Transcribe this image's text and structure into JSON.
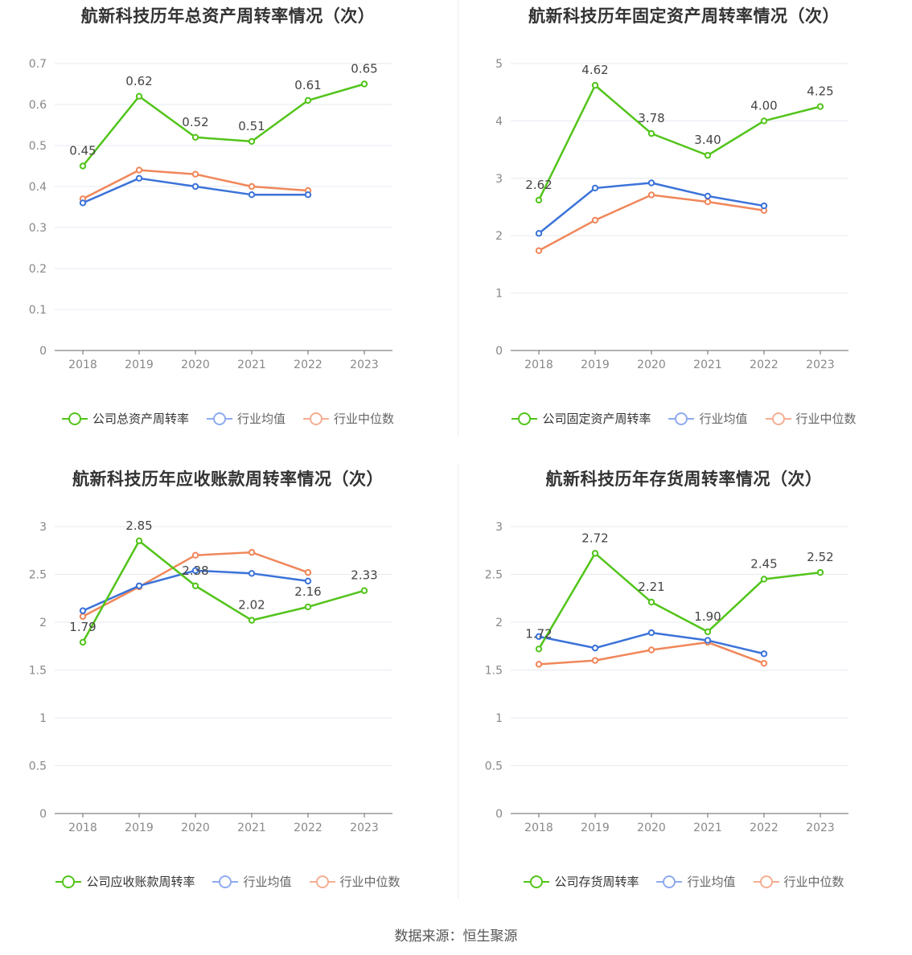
{
  "colors": {
    "company": "#52c41a",
    "average": "#3b73d9",
    "median": "#f0875a"
  },
  "footer": {
    "source": "数据来源：恒生聚源"
  },
  "chart_data": [
    {
      "type": "line",
      "title": "航新科技历年总资产周转率情况（次）",
      "categories": [
        "2018",
        "2019",
        "2020",
        "2021",
        "2022",
        "2023"
      ],
      "ylim": [
        0,
        0.7
      ],
      "yticks": [
        "0",
        "0.1",
        "0.2",
        "0.3",
        "0.4",
        "0.5",
        "0.6",
        "0.7"
      ],
      "series": [
        {
          "name": "公司总资产周转率",
          "values": [
            0.45,
            0.62,
            0.52,
            0.51,
            0.61,
            0.65
          ],
          "labels": [
            "0.45",
            "0.62",
            "0.52",
            "0.51",
            "0.61",
            "0.65"
          ]
        },
        {
          "name": "行业均值",
          "values": [
            0.36,
            0.42,
            0.4,
            0.38,
            0.38,
            null
          ]
        },
        {
          "name": "行业中位数",
          "values": [
            0.37,
            0.44,
            0.43,
            0.4,
            0.39,
            null
          ]
        }
      ],
      "grid": true,
      "legend": "bottom"
    },
    {
      "type": "line",
      "title": "航新科技历年固定资产周转率情况（次）",
      "categories": [
        "2018",
        "2019",
        "2020",
        "2021",
        "2022",
        "2023"
      ],
      "ylim": [
        0,
        5
      ],
      "yticks": [
        "0",
        "1",
        "2",
        "3",
        "4",
        "5"
      ],
      "series": [
        {
          "name": "公司固定资产周转率",
          "values": [
            2.62,
            4.62,
            3.78,
            3.4,
            4.0,
            4.25
          ],
          "labels": [
            "2.62",
            "4.62",
            "3.78",
            "3.40",
            "4.00",
            "4.25"
          ]
        },
        {
          "name": "行业均值",
          "values": [
            2.04,
            2.83,
            2.92,
            2.69,
            2.52,
            null
          ]
        },
        {
          "name": "行业中位数",
          "values": [
            1.74,
            2.27,
            2.71,
            2.59,
            2.44,
            null
          ]
        }
      ],
      "grid": true,
      "legend": "bottom"
    },
    {
      "type": "line",
      "title": "航新科技历年应收账款周转率情况（次）",
      "categories": [
        "2018",
        "2019",
        "2020",
        "2021",
        "2022",
        "2023"
      ],
      "ylim": [
        0,
        3
      ],
      "yticks": [
        "0",
        "0.5",
        "1",
        "1.5",
        "2",
        "2.5",
        "3"
      ],
      "series": [
        {
          "name": "公司应收账款周转率",
          "values": [
            1.79,
            2.85,
            2.38,
            2.02,
            2.16,
            2.33
          ],
          "labels": [
            "1.79",
            "2.85",
            "2.38",
            "2.02",
            "2.16",
            "2.33"
          ]
        },
        {
          "name": "行业均值",
          "values": [
            2.12,
            2.38,
            2.54,
            2.51,
            2.43,
            null
          ]
        },
        {
          "name": "行业中位数",
          "values": [
            2.06,
            2.37,
            2.7,
            2.73,
            2.52,
            null
          ]
        }
      ],
      "grid": true,
      "legend": "bottom"
    },
    {
      "type": "line",
      "title": "航新科技历年存货周转率情况（次）",
      "categories": [
        "2018",
        "2019",
        "2020",
        "2021",
        "2022",
        "2023"
      ],
      "ylim": [
        0,
        3
      ],
      "yticks": [
        "0",
        "0.5",
        "1",
        "1.5",
        "2",
        "2.5",
        "3"
      ],
      "series": [
        {
          "name": "公司存货周转率",
          "values": [
            1.72,
            2.72,
            2.21,
            1.9,
            2.45,
            2.52
          ],
          "labels": [
            "1.72",
            "2.72",
            "2.21",
            "1.90",
            "2.45",
            "2.52"
          ]
        },
        {
          "name": "行业均值",
          "values": [
            1.85,
            1.73,
            1.89,
            1.81,
            1.67,
            null
          ]
        },
        {
          "name": "行业中位数",
          "values": [
            1.56,
            1.6,
            1.71,
            1.79,
            1.57,
            null
          ]
        }
      ],
      "grid": true,
      "legend": "bottom"
    }
  ]
}
